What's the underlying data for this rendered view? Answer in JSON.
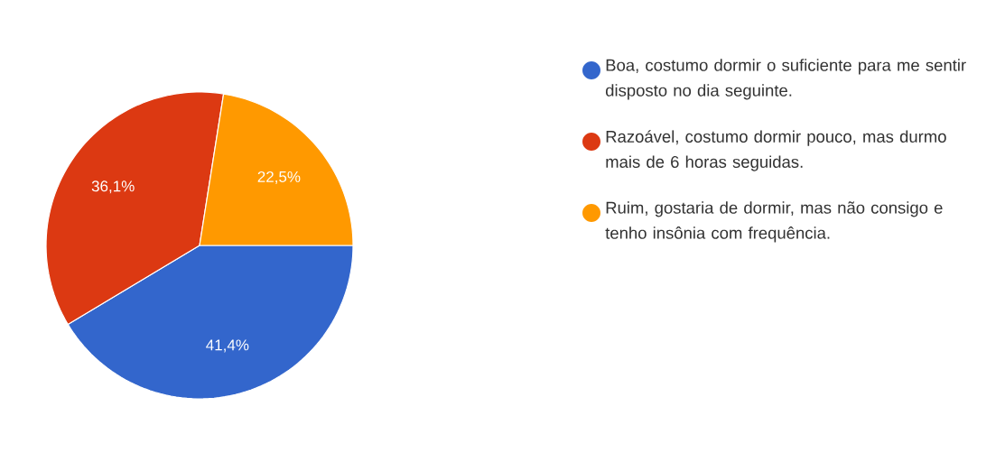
{
  "chart_data": {
    "type": "pie",
    "categories": [
      "Boa, costumo dormir o suficiente para me sentir disposto no dia seguinte.",
      "Razoável, costumo dormir pouco, mas durmo mais de 6 horas seguidas.",
      "Ruim, gostaria de dormir, mas não consigo e tenho insônia com frequência."
    ],
    "values": [
      41.4,
      36.1,
      22.5
    ],
    "colors": [
      "#3366cc",
      "#dc3912",
      "#ff9900"
    ],
    "value_labels": [
      "41,4%",
      "36,1%",
      "22,5%"
    ],
    "legend": "right"
  }
}
